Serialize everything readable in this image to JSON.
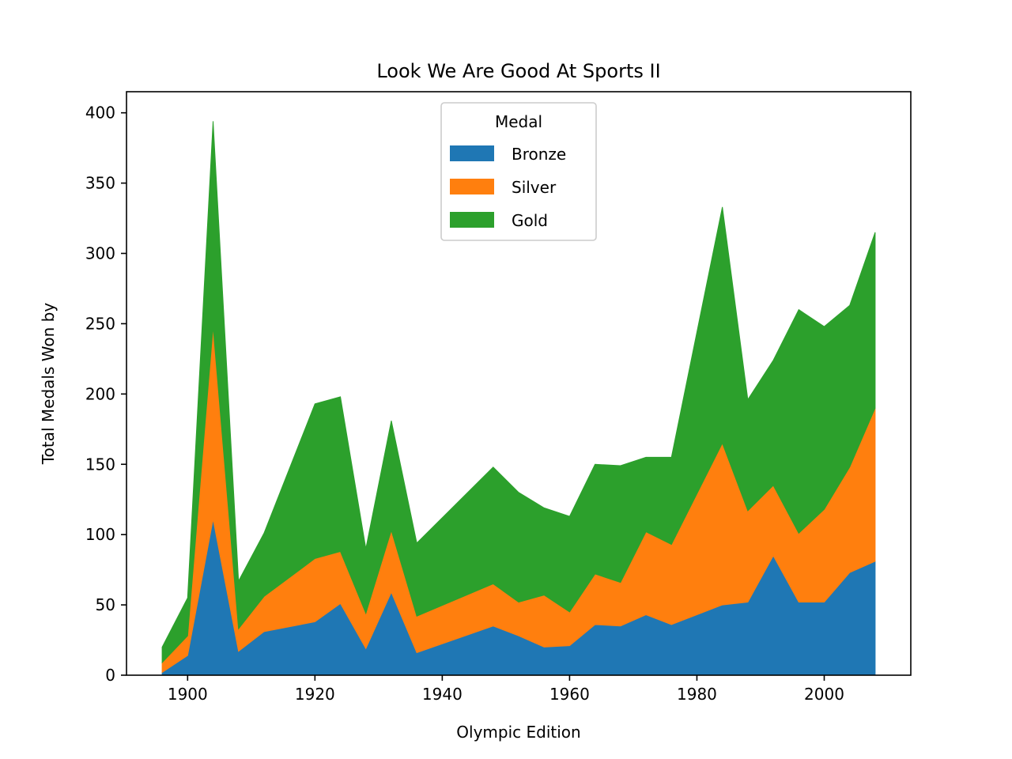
{
  "chart_data": {
    "type": "area",
    "stacked": true,
    "title": "Look We Are Good At Sports II",
    "xlabel": "Olympic Edition",
    "ylabel": "Total Medals Won by",
    "xlim": [
      1890.4,
      2013.6
    ],
    "ylim": [
      0,
      415
    ],
    "xticks": [
      1900,
      1920,
      1940,
      1960,
      1980,
      2000
    ],
    "yticks": [
      0,
      50,
      100,
      150,
      200,
      250,
      300,
      350,
      400
    ],
    "x": [
      1896,
      1900,
      1904,
      1908,
      1912,
      1920,
      1924,
      1928,
      1932,
      1936,
      1948,
      1952,
      1956,
      1960,
      1964,
      1968,
      1972,
      1976,
      1984,
      1988,
      1992,
      1996,
      2000,
      2004,
      2008
    ],
    "series": [
      {
        "name": "Bronze",
        "color": "#1f77b4",
        "values": [
          2,
          14,
          111,
          17,
          31,
          38,
          51,
          19,
          59,
          16,
          35,
          28,
          20,
          21,
          36,
          35,
          43,
          36,
          50,
          52,
          85,
          52,
          52,
          73,
          81
        ]
      },
      {
        "name": "Silver",
        "color": "#ff7f0e",
        "values": [
          7,
          14,
          137,
          16,
          25,
          45,
          37,
          25,
          44,
          26,
          30,
          24,
          37,
          24,
          36,
          31,
          59,
          57,
          115,
          65,
          50,
          49,
          66,
          75,
          109
        ]
      },
      {
        "name": "Gold",
        "color": "#2ca02c",
        "values": [
          11,
          27,
          146,
          34,
          45,
          110,
          110,
          46,
          78,
          52,
          83,
          78,
          62,
          68,
          78,
          83,
          53,
          62,
          168,
          79,
          89,
          159,
          130,
          115,
          125
        ]
      }
    ],
    "legend": {
      "title": "Medal",
      "position": "top-center"
    },
    "grid": false
  }
}
